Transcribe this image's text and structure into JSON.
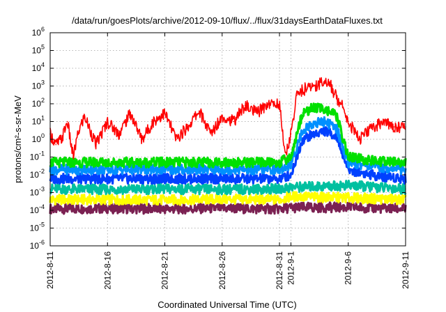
{
  "chart_data": {
    "type": "line",
    "title": "/data/run/goesPlots/archive/2012-09-10/flux/../flux/31daysEarthDataFluxes.txt",
    "xlabel": "Coordinated Universal Time (UTC)",
    "ylabel": "protons/cm²-s-sr-MeV",
    "yscale": "log",
    "ylim": [
      1e-06,
      1000000.0
    ],
    "xlim": [
      "2012-08-11",
      "2012-09-11"
    ],
    "grid": true,
    "legend": "none",
    "y_ticks": [
      {
        "base": "10",
        "exp": "-6"
      },
      {
        "base": "10",
        "exp": "-5"
      },
      {
        "base": "10",
        "exp": "-4"
      },
      {
        "base": "10",
        "exp": "-3"
      },
      {
        "base": "10",
        "exp": "-2"
      },
      {
        "base": "10",
        "exp": "-1"
      },
      {
        "base": "10",
        "exp": "0"
      },
      {
        "base": "10",
        "exp": "1"
      },
      {
        "base": "10",
        "exp": "2"
      },
      {
        "base": "10",
        "exp": "3"
      },
      {
        "base": "10",
        "exp": "4"
      },
      {
        "base": "10",
        "exp": "5"
      },
      {
        "base": "10",
        "exp": "6"
      }
    ],
    "x_ticks": [
      "2012-8-11",
      "2012-8-16",
      "2012-8-21",
      "2012-8-26",
      "2012-8-31",
      "2012-9-1",
      "2012-9-6",
      "2012-9-11"
    ],
    "x_tick_days": [
      0,
      5,
      10,
      15,
      20,
      21,
      26,
      31
    ],
    "series": [
      {
        "color": "#7b2152",
        "x": [
          0,
          5,
          10,
          15,
          20,
          21,
          26,
          31
        ],
        "y": [
          0.00012,
          0.00013,
          0.00012,
          0.00013,
          0.00012,
          0.00014,
          0.00015,
          0.00012
        ]
      },
      {
        "color": "#ffff00",
        "x": [
          0,
          5,
          10,
          15,
          20,
          21,
          26,
          31
        ],
        "y": [
          0.0004,
          0.0004,
          0.00038,
          0.00042,
          0.0004,
          0.0006,
          0.0005,
          0.0004
        ]
      },
      {
        "color": "#00c0a0",
        "x": [
          0,
          5,
          10,
          15,
          20,
          21,
          26,
          31
        ],
        "y": [
          0.0016,
          0.0015,
          0.0016,
          0.0015,
          0.0016,
          0.002,
          0.0025,
          0.0016
        ]
      },
      {
        "color": "#0040ff",
        "x": [
          0,
          5,
          10,
          15,
          20,
          21,
          22,
          23,
          24,
          25,
          26,
          28,
          31
        ],
        "y": [
          0.006,
          0.006,
          0.006,
          0.006,
          0.006,
          0.01,
          1.0,
          2.0,
          3.0,
          1.5,
          0.02,
          0.01,
          0.006
        ]
      },
      {
        "color": "#0090ff",
        "x": [
          0,
          5,
          10,
          15,
          20,
          21,
          22,
          23,
          24,
          25,
          26,
          28,
          31
        ],
        "y": [
          0.02,
          0.02,
          0.02,
          0.02,
          0.02,
          0.04,
          3.0,
          8.0,
          10.0,
          4.0,
          0.05,
          0.03,
          0.02
        ]
      },
      {
        "color": "#00e000",
        "x": [
          0,
          5,
          10,
          15,
          20,
          21,
          22,
          23,
          24,
          25,
          26,
          28,
          31
        ],
        "y": [
          0.05,
          0.05,
          0.05,
          0.05,
          0.05,
          0.1,
          30.0,
          60.0,
          50.0,
          20.0,
          0.1,
          0.06,
          0.05
        ]
      },
      {
        "color": "#ff0000",
        "x": [
          0,
          0.5,
          1,
          1.5,
          2,
          2.5,
          3,
          4,
          5,
          6,
          7,
          8,
          9,
          10,
          11,
          12,
          13,
          14,
          15,
          16,
          17,
          18,
          19,
          20,
          20.5,
          21,
          21.5,
          22,
          23,
          24,
          24.5,
          25,
          25.5,
          26,
          27,
          28,
          29,
          30,
          31
        ],
        "y": [
          2.0,
          0.5,
          1.0,
          10.0,
          0.1,
          3.0,
          20.0,
          0.5,
          10.0,
          2.0,
          30.0,
          1.0,
          10.0,
          30.0,
          1.0,
          5.0,
          40.0,
          2.0,
          20.0,
          10.0,
          80.0,
          30.0,
          100.0,
          100.0,
          0.1,
          2.0,
          300.0,
          600.0,
          1000.0,
          2000.0,
          1000.0,
          200.0,
          100.0,
          10.0,
          1.0,
          4.0,
          10.0,
          5.0,
          5.0
        ]
      }
    ]
  }
}
